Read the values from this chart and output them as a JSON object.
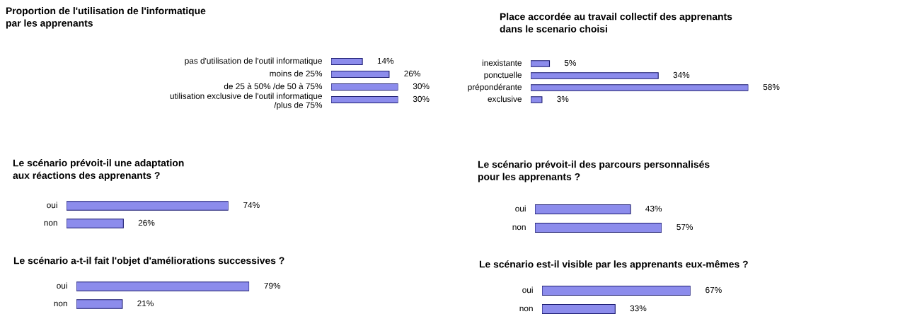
{
  "chart_data": [
    {
      "type": "bar",
      "orientation": "horizontal",
      "title": "Proportion de l'utilisation de l'informatique\npar les apprenants",
      "categories": [
        "pas d'utilisation de l'outil informatique",
        "moins de 25%",
        "de 25 à 50% /de 50 à 75%",
        "utilisation exclusive de l'outil informatique\n/plus de 75%"
      ],
      "values": [
        14,
        26,
        30,
        30
      ],
      "value_labels": [
        "14%",
        "26%",
        "30%",
        "30%"
      ],
      "color": "#8c8cec"
    },
    {
      "type": "bar",
      "orientation": "horizontal",
      "title": "Place accordée au travail collectif des apprenants\ndans le scenario choisi",
      "categories": [
        "inexistante",
        "ponctuelle",
        "prépondérante",
        "exclusive"
      ],
      "values": [
        5,
        34,
        58,
        3
      ],
      "value_labels": [
        "5%",
        "34%",
        "58%",
        "3%"
      ],
      "color": "#8c8cec"
    },
    {
      "type": "bar",
      "orientation": "horizontal",
      "title": "Le scénario prévoit-il une adaptation\naux réactions des apprenants ?",
      "categories": [
        "oui",
        "non"
      ],
      "values": [
        74,
        26
      ],
      "value_labels": [
        "74%",
        "26%"
      ],
      "color": "#8c8cec"
    },
    {
      "type": "bar",
      "orientation": "horizontal",
      "title": "Le scénario prévoit-il des parcours personnalisés\npour les apprenants ?",
      "categories": [
        "oui",
        "non"
      ],
      "values": [
        43,
        57
      ],
      "value_labels": [
        "43%",
        "57%"
      ],
      "color": "#8c8cec"
    },
    {
      "type": "bar",
      "orientation": "horizontal",
      "title": "Le scénario a-t-il fait l'objet d'améliorations successives ?",
      "categories": [
        "oui",
        "non"
      ],
      "values": [
        79,
        21
      ],
      "value_labels": [
        "79%",
        "21%"
      ],
      "color": "#8c8cec"
    },
    {
      "type": "bar",
      "orientation": "horizontal",
      "title": "Le scénario est-il visible par les apprenants eux-mêmes ?",
      "categories": [
        "oui",
        "non"
      ],
      "values": [
        67,
        33
      ],
      "value_labels": [
        "67%",
        "33%"
      ],
      "color": "#8c8cec"
    }
  ]
}
